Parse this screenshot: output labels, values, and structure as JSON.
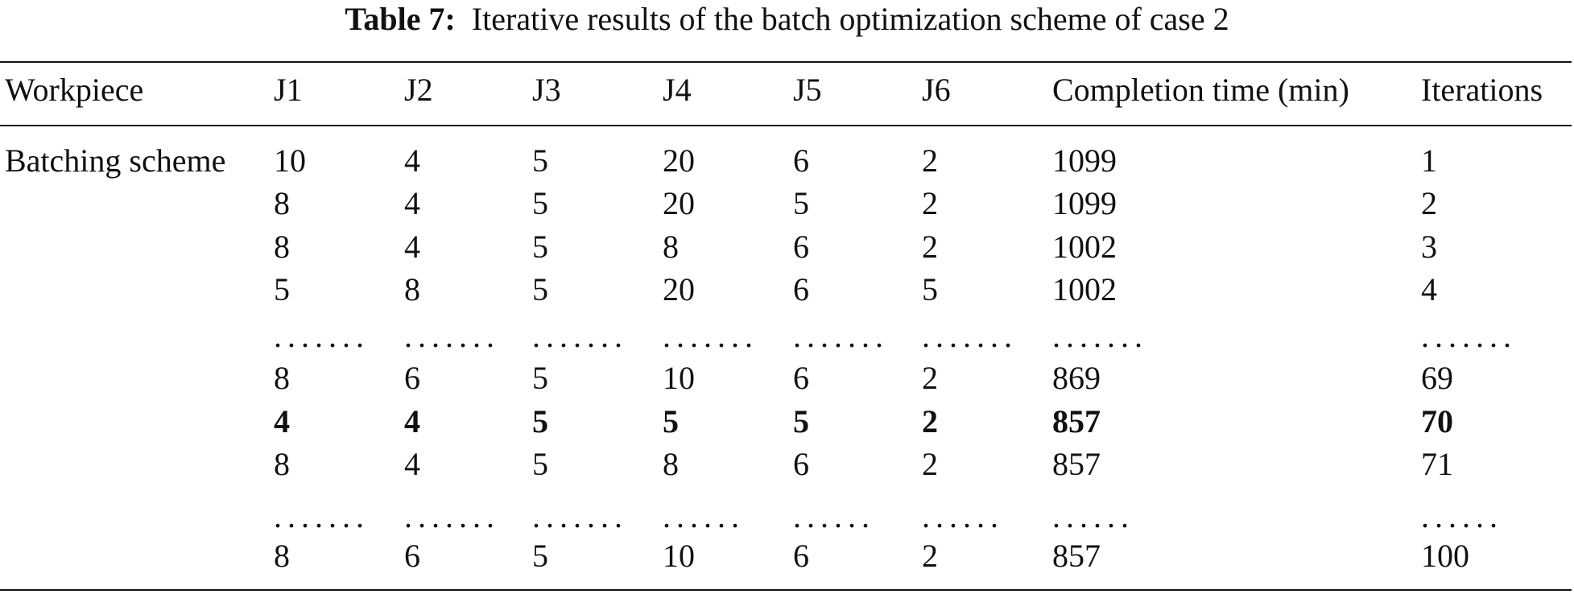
{
  "title": {
    "label": "Table 7:",
    "text": "Iterative results of the batch optimization scheme of case 2"
  },
  "table": {
    "header": [
      "Workpiece",
      "J1",
      "J2",
      "J3",
      "J4",
      "J5",
      "J6",
      "Completion time (min)",
      "Iterations"
    ],
    "row_label": "Batching scheme",
    "bold_row": 6,
    "rows": [
      [
        10,
        4,
        5,
        20,
        6,
        2,
        1099,
        1
      ],
      [
        8,
        4,
        5,
        20,
        5,
        2,
        1099,
        2
      ],
      [
        8,
        4,
        5,
        8,
        6,
        2,
        1002,
        3
      ],
      [
        5,
        8,
        5,
        20,
        6,
        5,
        1002,
        4
      ],
      [
        ".......",
        ".......",
        ".......",
        ".......",
        ".......",
        ".......",
        ".......",
        "......."
      ],
      [
        8,
        6,
        5,
        10,
        6,
        2,
        869,
        69
      ],
      [
        4,
        4,
        5,
        5,
        5,
        2,
        857,
        70
      ],
      [
        8,
        4,
        5,
        8,
        6,
        2,
        857,
        71
      ],
      [
        ".......",
        ".......",
        ".......",
        "......",
        "......",
        "......",
        "......",
        "......"
      ],
      [
        8,
        6,
        5,
        10,
        6,
        2,
        857,
        100
      ]
    ]
  }
}
